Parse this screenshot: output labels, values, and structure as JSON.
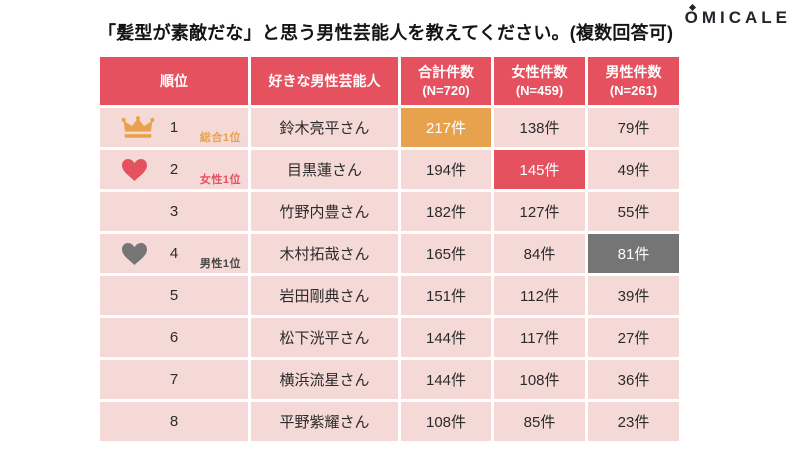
{
  "header": {
    "title": "「髪型が素敵だな」と思う男性芸能人を教えてください。(複数回答可)",
    "logo_text": "OMICALE"
  },
  "colors": {
    "header_bg": "#e5515f",
    "header_text": "#ffffff",
    "cell_bg": "#f5d9d6",
    "cell_text": "#2b2b2b",
    "highlight_orange": "#e8a24e",
    "highlight_red": "#e5515f",
    "highlight_gray": "#757575"
  },
  "table": {
    "columns": [
      {
        "label": "順位",
        "sub": ""
      },
      {
        "label": "好きな男性芸能人",
        "sub": ""
      },
      {
        "label": "合計件数",
        "sub": "(N=720)"
      },
      {
        "label": "女性件数",
        "sub": "(N=459)"
      },
      {
        "label": "男性件数",
        "sub": "(N=261)"
      }
    ],
    "rows": [
      {
        "rank": "1",
        "icon": "crown",
        "icon_color": "#e8a24e",
        "badge": "総合1位",
        "badge_color": "#e8a24e",
        "name": "鈴木亮平さん",
        "total": "217件",
        "female": "138件",
        "male": "79件",
        "highlight_col": "total",
        "highlight_color": "#e8a24e"
      },
      {
        "rank": "2",
        "icon": "heart",
        "icon_color": "#e5515f",
        "badge": "女性1位",
        "badge_color": "#e5515f",
        "name": "目黒蓮さん",
        "total": "194件",
        "female": "145件",
        "male": "49件",
        "highlight_col": "female",
        "highlight_color": "#e5515f"
      },
      {
        "rank": "3",
        "icon": "",
        "icon_color": "",
        "badge": "",
        "badge_color": "",
        "name": "竹野内豊さん",
        "total": "182件",
        "female": "127件",
        "male": "55件",
        "highlight_col": "",
        "highlight_color": ""
      },
      {
        "rank": "4",
        "icon": "heart",
        "icon_color": "#757575",
        "badge": "男性1位",
        "badge_color": "#474747",
        "name": "木村拓哉さん",
        "total": "165件",
        "female": "84件",
        "male": "81件",
        "highlight_col": "male",
        "highlight_color": "#757575"
      },
      {
        "rank": "5",
        "icon": "",
        "icon_color": "",
        "badge": "",
        "badge_color": "",
        "name": "岩田剛典さん",
        "total": "151件",
        "female": "112件",
        "male": "39件",
        "highlight_col": "",
        "highlight_color": ""
      },
      {
        "rank": "6",
        "icon": "",
        "icon_color": "",
        "badge": "",
        "badge_color": "",
        "name": "松下洸平さん",
        "total": "144件",
        "female": "117件",
        "male": "27件",
        "highlight_col": "",
        "highlight_color": ""
      },
      {
        "rank": "7",
        "icon": "",
        "icon_color": "",
        "badge": "",
        "badge_color": "",
        "name": "横浜流星さん",
        "total": "144件",
        "female": "108件",
        "male": "36件",
        "highlight_col": "",
        "highlight_color": ""
      },
      {
        "rank": "8",
        "icon": "",
        "icon_color": "",
        "badge": "",
        "badge_color": "",
        "name": "平野紫耀さん",
        "total": "108件",
        "female": "85件",
        "male": "23件",
        "highlight_col": "",
        "highlight_color": ""
      }
    ]
  },
  "chart_data": {
    "type": "table",
    "title": "「髪型が素敵だな」と思う男性芸能人を教えてください。(複数回答可)",
    "columns": [
      "順位",
      "好きな男性芸能人",
      "合計件数 (N=720)",
      "女性件数 (N=459)",
      "男性件数 (N=261)"
    ],
    "rows": [
      [
        1,
        "鈴木亮平さん",
        217,
        138,
        79
      ],
      [
        2,
        "目黒蓮さん",
        194,
        145,
        49
      ],
      [
        3,
        "竹野内豊さん",
        182,
        127,
        55
      ],
      [
        4,
        "木村拓哉さん",
        165,
        84,
        81
      ],
      [
        5,
        "岩田剛典さん",
        151,
        112,
        39
      ],
      [
        6,
        "松下洸平さん",
        144,
        117,
        27
      ],
      [
        7,
        "横浜流星さん",
        144,
        108,
        36
      ],
      [
        8,
        "平野紫耀さん",
        108,
        85,
        23
      ]
    ],
    "annotations": [
      "1位に総合1位バッジ(王冠)・合計217件がオレンジ強調",
      "2位に女性1位バッジ(赤ハート)・女性145件が赤強調",
      "4位に男性1位バッジ(灰ハート)・男性81件が灰強調"
    ],
    "unit": "件"
  }
}
